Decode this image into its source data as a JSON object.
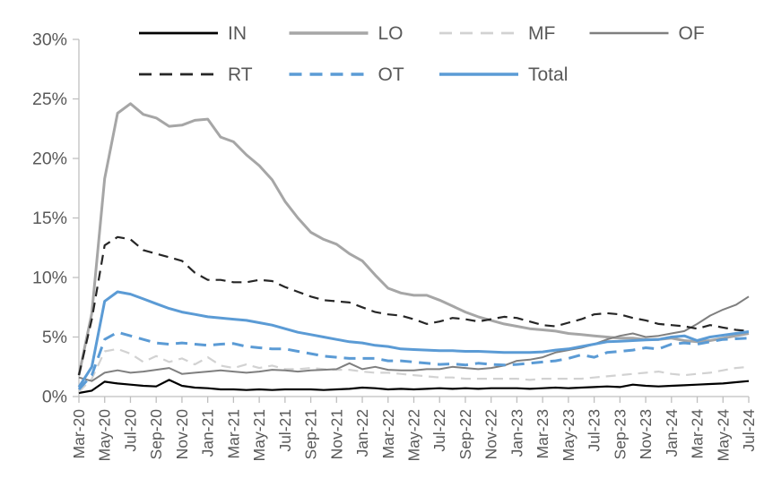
{
  "figure": {
    "background": "#ffffff",
    "axis_color": "#bfbfbf",
    "label_color": "#595959"
  },
  "chart_data": {
    "type": "line",
    "title": "",
    "xlabel": "",
    "ylabel": "",
    "ylim": [
      0,
      30
    ],
    "y_tick_labels": [
      "0%",
      "5%",
      "10%",
      "15%",
      "20%",
      "25%",
      "30%"
    ],
    "x_tick_step": 2,
    "grid": false,
    "legend_position": "top",
    "x": [
      "Mar-20",
      "Apr-20",
      "May-20",
      "Jun-20",
      "Jul-20",
      "Aug-20",
      "Sep-20",
      "Oct-20",
      "Nov-20",
      "Dec-20",
      "Jan-21",
      "Feb-21",
      "Mar-21",
      "Apr-21",
      "May-21",
      "Jun-21",
      "Jul-21",
      "Aug-21",
      "Sep-21",
      "Oct-21",
      "Nov-21",
      "Dec-21",
      "Jan-22",
      "Feb-22",
      "Mar-22",
      "Apr-22",
      "May-22",
      "Jun-22",
      "Jul-22",
      "Aug-22",
      "Sep-22",
      "Oct-22",
      "Nov-22",
      "Dec-22",
      "Jan-23",
      "Feb-23",
      "Mar-23",
      "Apr-23",
      "May-23",
      "Jun-23",
      "Jul-23",
      "Aug-23",
      "Sep-23",
      "Oct-23",
      "Nov-23",
      "Dec-23",
      "Jan-24",
      "Feb-24",
      "Mar-24",
      "Apr-24",
      "May-24",
      "Jun-24",
      "Jul-24"
    ],
    "series": [
      {
        "name": "IN",
        "color": "#000000",
        "style": "solid",
        "width": 2.2,
        "values": [
          0.3,
          0.5,
          1.25,
          1.1,
          1.0,
          0.9,
          0.85,
          1.4,
          0.9,
          0.75,
          0.7,
          0.6,
          0.6,
          0.55,
          0.6,
          0.55,
          0.6,
          0.6,
          0.6,
          0.55,
          0.6,
          0.65,
          0.75,
          0.7,
          0.6,
          0.65,
          0.6,
          0.65,
          0.7,
          0.65,
          0.7,
          0.65,
          0.7,
          0.7,
          0.7,
          0.65,
          0.7,
          0.75,
          0.7,
          0.75,
          0.8,
          0.85,
          0.8,
          1.0,
          0.9,
          0.85,
          0.9,
          0.95,
          1.0,
          1.05,
          1.1,
          1.2,
          1.3
        ]
      },
      {
        "name": "LO",
        "color": "#a6a6a6",
        "style": "solid",
        "width": 3,
        "values": [
          1.8,
          7.0,
          18.3,
          23.8,
          24.6,
          23.7,
          23.4,
          22.7,
          22.8,
          23.2,
          23.3,
          21.8,
          21.4,
          20.3,
          19.4,
          18.2,
          16.4,
          15.0,
          13.8,
          13.2,
          12.8,
          12.0,
          11.4,
          10.2,
          9.1,
          8.7,
          8.5,
          8.5,
          8.1,
          7.6,
          7.1,
          6.7,
          6.4,
          6.1,
          5.9,
          5.7,
          5.6,
          5.5,
          5.3,
          5.2,
          5.1,
          5.0,
          4.9,
          4.9,
          4.8,
          4.8,
          4.9,
          4.7,
          4.6,
          4.7,
          4.9,
          5.1,
          5.3
        ]
      },
      {
        "name": "MF",
        "color": "#d2d2d2",
        "style": "dashed",
        "width": 2.2,
        "values": [
          0.4,
          1.5,
          3.8,
          4.0,
          3.6,
          2.9,
          3.4,
          2.9,
          3.2,
          2.7,
          3.3,
          2.6,
          2.4,
          2.7,
          2.4,
          2.6,
          2.3,
          2.3,
          2.4,
          2.3,
          2.25,
          2.25,
          2.1,
          2.0,
          2.0,
          1.9,
          1.8,
          1.7,
          1.6,
          1.6,
          1.5,
          1.5,
          1.5,
          1.5,
          1.5,
          1.4,
          1.5,
          1.5,
          1.5,
          1.5,
          1.6,
          1.7,
          1.8,
          1.9,
          2.0,
          2.1,
          1.9,
          1.8,
          1.9,
          2.0,
          2.2,
          2.4,
          2.5
        ]
      },
      {
        "name": "OF",
        "color": "#7f7f7f",
        "style": "solid",
        "width": 2,
        "values": [
          1.6,
          1.3,
          2.0,
          2.2,
          2.0,
          2.1,
          2.25,
          2.4,
          1.9,
          2.0,
          2.1,
          2.2,
          2.1,
          2.0,
          2.1,
          2.25,
          2.2,
          2.1,
          2.2,
          2.25,
          2.3,
          2.8,
          2.3,
          2.5,
          2.25,
          2.2,
          2.2,
          2.3,
          2.3,
          2.5,
          2.4,
          2.3,
          2.4,
          2.6,
          3.0,
          3.1,
          3.3,
          3.7,
          3.9,
          4.1,
          4.4,
          4.8,
          5.1,
          5.3,
          5.0,
          5.1,
          5.3,
          5.5,
          6.1,
          6.8,
          7.3,
          7.7,
          8.4
        ]
      },
      {
        "name": "RT",
        "color": "#262626",
        "style": "dashed",
        "width": 2.2,
        "values": [
          1.8,
          6.5,
          12.7,
          13.4,
          13.2,
          12.3,
          12.0,
          11.7,
          11.4,
          10.4,
          9.8,
          9.8,
          9.6,
          9.6,
          9.8,
          9.7,
          9.2,
          8.8,
          8.4,
          8.1,
          8.0,
          7.9,
          7.5,
          7.1,
          6.9,
          6.8,
          6.5,
          6.1,
          6.3,
          6.6,
          6.5,
          6.3,
          6.5,
          6.7,
          6.6,
          6.3,
          6.0,
          5.9,
          6.2,
          6.5,
          6.9,
          7.0,
          6.9,
          6.6,
          6.4,
          6.1,
          6.0,
          5.9,
          5.7,
          6.0,
          5.8,
          5.6,
          5.5
        ]
      },
      {
        "name": "OT",
        "color": "#5b9bd5",
        "style": "dashed",
        "width": 3,
        "values": [
          0.6,
          1.8,
          4.8,
          5.4,
          5.1,
          4.8,
          4.5,
          4.4,
          4.5,
          4.4,
          4.3,
          4.4,
          4.45,
          4.2,
          4.1,
          4.0,
          4.0,
          3.8,
          3.6,
          3.4,
          3.3,
          3.2,
          3.2,
          3.2,
          3.0,
          3.0,
          2.9,
          2.8,
          2.7,
          2.75,
          2.65,
          2.8,
          2.7,
          2.65,
          2.7,
          2.8,
          2.9,
          3.0,
          3.2,
          3.5,
          3.3,
          3.7,
          3.8,
          3.9,
          4.1,
          4.0,
          4.4,
          4.5,
          4.4,
          4.6,
          4.8,
          4.85,
          4.9
        ]
      },
      {
        "name": "Total",
        "color": "#5b9bd5",
        "style": "solid",
        "width": 3,
        "values": [
          0.8,
          2.5,
          8.0,
          8.8,
          8.6,
          8.2,
          7.8,
          7.4,
          7.1,
          6.9,
          6.7,
          6.6,
          6.5,
          6.4,
          6.2,
          6.0,
          5.7,
          5.4,
          5.2,
          5.0,
          4.8,
          4.6,
          4.5,
          4.3,
          4.2,
          4.0,
          3.95,
          3.9,
          3.85,
          3.85,
          3.8,
          3.8,
          3.75,
          3.7,
          3.7,
          3.7,
          3.75,
          3.9,
          4.0,
          4.2,
          4.4,
          4.6,
          4.65,
          4.7,
          4.75,
          4.8,
          5.0,
          5.1,
          4.7,
          5.0,
          5.15,
          5.3,
          5.45
        ]
      }
    ]
  }
}
